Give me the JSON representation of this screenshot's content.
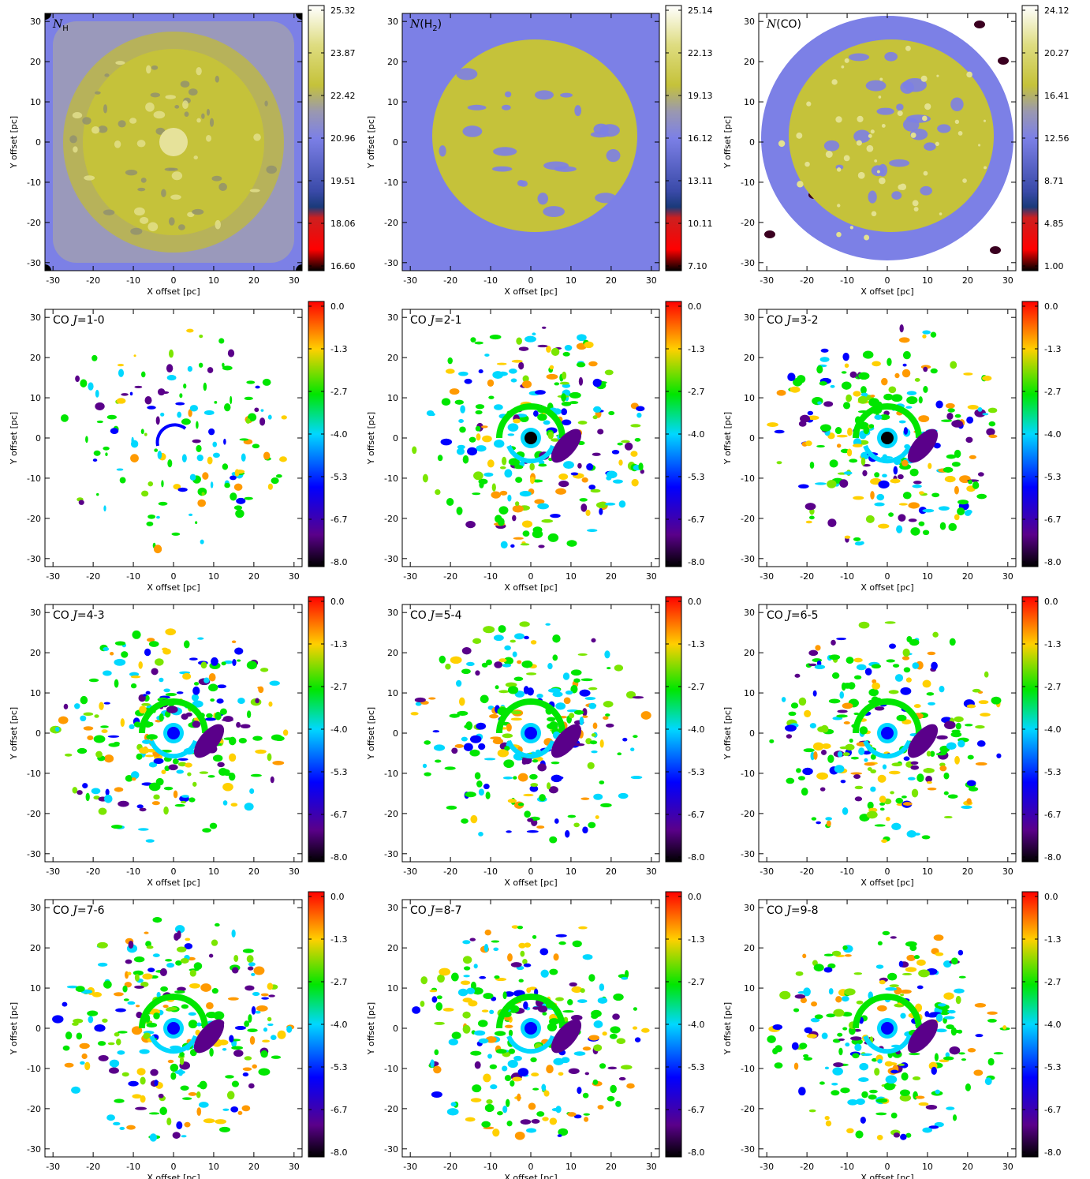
{
  "chart_data": [
    {
      "type": "heatmap",
      "title": "N_H",
      "title_main": "N",
      "title_sub": "H",
      "title_paren": false,
      "colormap": "column",
      "xlabel": "X offset [pc]",
      "ylabel": "Y offset [pc]",
      "xlim": [
        -32,
        32
      ],
      "ylim": [
        -32,
        32
      ],
      "xticks": [
        -30,
        -20,
        -10,
        0,
        10,
        20,
        30
      ],
      "yticks": [
        -30,
        -20,
        -10,
        0,
        10,
        20,
        30
      ],
      "colorbar_labels": [
        "25.32",
        "23.87",
        "22.42",
        "20.96",
        "19.51",
        "18.06",
        "16.60"
      ],
      "colorbar_range": [
        16.6,
        25.32
      ],
      "structure": "dense"
    },
    {
      "type": "heatmap",
      "title": "N(H2)",
      "title_main": "N",
      "title_sub": "2",
      "title_paren": true,
      "title_species": "H",
      "colormap": "column",
      "xlabel": "X offset [pc]",
      "ylabel": "Y offset [pc]",
      "xlim": [
        -32,
        32
      ],
      "ylim": [
        -32,
        32
      ],
      "xticks": [
        -30,
        -20,
        -10,
        0,
        10,
        20,
        30
      ],
      "yticks": [
        -30,
        -20,
        -10,
        0,
        10,
        20,
        30
      ],
      "colorbar_labels": [
        "25.14",
        "22.13",
        "19.13",
        "16.12",
        "13.11",
        "10.11",
        "7.10"
      ],
      "colorbar_range": [
        7.1,
        25.14
      ],
      "structure": "disk"
    },
    {
      "type": "heatmap",
      "title": "N(CO)",
      "title_main": "N",
      "title_sub": "",
      "title_paren": true,
      "title_species": "CO",
      "colormap": "column",
      "xlabel": "X offset [pc]",
      "ylabel": "Y offset [pc]",
      "xlim": [
        -32,
        32
      ],
      "ylim": [
        -32,
        32
      ],
      "xticks": [
        -30,
        -20,
        -10,
        0,
        10,
        20,
        30
      ],
      "yticks": [
        -30,
        -20,
        -10,
        0,
        10,
        20,
        30
      ],
      "colorbar_labels": [
        "24.12",
        "20.27",
        "16.41",
        "12.56",
        "8.71",
        "4.85",
        "1.00"
      ],
      "colorbar_range": [
        1.0,
        24.12
      ],
      "structure": "disk"
    },
    {
      "type": "heatmap",
      "title": "CO J=1-0",
      "line": "1-0",
      "colormap": "rainbow",
      "xlabel": "X offset [pc]",
      "ylabel": "Y offset [pc]",
      "xlim": [
        -32,
        32
      ],
      "ylim": [
        -32,
        32
      ],
      "xticks": [
        -30,
        -20,
        -10,
        0,
        10,
        20,
        30
      ],
      "yticks": [
        -30,
        -20,
        -10,
        0,
        10,
        20,
        30
      ],
      "colorbar_labels": [
        "0.0",
        "-1.3",
        "-2.7",
        "-4.0",
        "-5.3",
        "-6.7",
        "-8.0"
      ],
      "colorbar_range": [
        -8.0,
        0.0
      ],
      "structure": "sparse"
    },
    {
      "type": "heatmap",
      "title": "CO J=2-1",
      "line": "2-1",
      "colormap": "rainbow",
      "xlabel": "X offset [pc]",
      "ylabel": "Y offset [pc]",
      "xlim": [
        -32,
        32
      ],
      "ylim": [
        -32,
        32
      ],
      "xticks": [
        -30,
        -20,
        -10,
        0,
        10,
        20,
        30
      ],
      "yticks": [
        -30,
        -20,
        -10,
        0,
        10,
        20,
        30
      ],
      "colorbar_labels": [
        "0.0",
        "-1.3",
        "-2.7",
        "-4.0",
        "-5.3",
        "-6.7",
        "-8.0"
      ],
      "colorbar_range": [
        -8.0,
        0.0
      ],
      "structure": "clumps"
    },
    {
      "type": "heatmap",
      "title": "CO J=3-2",
      "line": "3-2",
      "colormap": "rainbow",
      "xlabel": "X offset [pc]",
      "ylabel": "Y offset [pc]",
      "xlim": [
        -32,
        32
      ],
      "ylim": [
        -32,
        32
      ],
      "xticks": [
        -30,
        -20,
        -10,
        0,
        10,
        20,
        30
      ],
      "yticks": [
        -30,
        -20,
        -10,
        0,
        10,
        20,
        30
      ],
      "colorbar_labels": [
        "0.0",
        "-1.3",
        "-2.7",
        "-4.0",
        "-5.3",
        "-6.7",
        "-8.0"
      ],
      "colorbar_range": [
        -8.0,
        0.0
      ],
      "structure": "clumps"
    },
    {
      "type": "heatmap",
      "title": "CO J=4-3",
      "line": "4-3",
      "colormap": "rainbow",
      "xlabel": "X offset [pc]",
      "ylabel": "Y offset [pc]",
      "xlim": [
        -32,
        32
      ],
      "ylim": [
        -32,
        32
      ],
      "xticks": [
        -30,
        -20,
        -10,
        0,
        10,
        20,
        30
      ],
      "yticks": [
        -30,
        -20,
        -10,
        0,
        10,
        20,
        30
      ],
      "colorbar_labels": [
        "0.0",
        "-1.3",
        "-2.7",
        "-4.0",
        "-5.3",
        "-6.7",
        "-8.0"
      ],
      "colorbar_range": [
        -8.0,
        0.0
      ],
      "structure": "clumps"
    },
    {
      "type": "heatmap",
      "title": "CO J=5-4",
      "line": "5-4",
      "colormap": "rainbow",
      "xlabel": "X offset [pc]",
      "ylabel": "Y offset [pc]",
      "xlim": [
        -32,
        32
      ],
      "ylim": [
        -32,
        32
      ],
      "xticks": [
        -30,
        -20,
        -10,
        0,
        10,
        20,
        30
      ],
      "yticks": [
        -30,
        -20,
        -10,
        0,
        10,
        20,
        30
      ],
      "colorbar_labels": [
        "0.0",
        "-1.3",
        "-2.7",
        "-4.0",
        "-5.3",
        "-6.7",
        "-8.0"
      ],
      "colorbar_range": [
        -8.0,
        0.0
      ],
      "structure": "clumps"
    },
    {
      "type": "heatmap",
      "title": "CO J=6-5",
      "line": "6-5",
      "colormap": "rainbow",
      "xlabel": "X offset [pc]",
      "ylabel": "Y offset [pc]",
      "xlim": [
        -32,
        32
      ],
      "ylim": [
        -32,
        32
      ],
      "xticks": [
        -30,
        -20,
        -10,
        0,
        10,
        20,
        30
      ],
      "yticks": [
        -30,
        -20,
        -10,
        0,
        10,
        20,
        30
      ],
      "colorbar_labels": [
        "0.0",
        "-1.3",
        "-2.7",
        "-4.0",
        "-5.3",
        "-6.7",
        "-8.0"
      ],
      "colorbar_range": [
        -8.0,
        0.0
      ],
      "structure": "clumps"
    },
    {
      "type": "heatmap",
      "title": "CO J=7-6",
      "line": "7-6",
      "colormap": "rainbow",
      "xlabel": "X offset [pc]",
      "ylabel": "Y offset [pc]",
      "xlim": [
        -32,
        32
      ],
      "ylim": [
        -32,
        32
      ],
      "xticks": [
        -30,
        -20,
        -10,
        0,
        10,
        20,
        30
      ],
      "yticks": [
        -30,
        -20,
        -10,
        0,
        10,
        20,
        30
      ],
      "colorbar_labels": [
        "0.0",
        "-1.3",
        "-2.7",
        "-4.0",
        "-5.3",
        "-6.7",
        "-8.0"
      ],
      "colorbar_range": [
        -8.0,
        0.0
      ],
      "structure": "clumps"
    },
    {
      "type": "heatmap",
      "title": "CO J=8-7",
      "line": "8-7",
      "colormap": "rainbow",
      "xlabel": "X offset [pc]",
      "ylabel": "Y offset [pc]",
      "xlim": [
        -32,
        32
      ],
      "ylim": [
        -32,
        32
      ],
      "xticks": [
        -30,
        -20,
        -10,
        0,
        10,
        20,
        30
      ],
      "yticks": [
        -30,
        -20,
        -10,
        0,
        10,
        20,
        30
      ],
      "colorbar_labels": [
        "0.0",
        "-1.3",
        "-2.7",
        "-4.0",
        "-5.3",
        "-6.7",
        "-8.0"
      ],
      "colorbar_range": [
        -8.0,
        0.0
      ],
      "structure": "clumps"
    },
    {
      "type": "heatmap",
      "title": "CO J=9-8",
      "line": "9-8",
      "colormap": "rainbow",
      "xlabel": "X offset [pc]",
      "ylabel": "Y offset [pc]",
      "xlim": [
        -32,
        32
      ],
      "ylim": [
        -32,
        32
      ],
      "xticks": [
        -30,
        -20,
        -10,
        0,
        10,
        20,
        30
      ],
      "yticks": [
        -30,
        -20,
        -10,
        0,
        10,
        20,
        30
      ],
      "colorbar_labels": [
        "0.0",
        "-1.3",
        "-2.7",
        "-4.0",
        "-5.3",
        "-6.7",
        "-8.0"
      ],
      "colorbar_range": [
        -8.0,
        0.0
      ],
      "structure": "clumps"
    }
  ],
  "colors": {
    "background_blue": "#7c80e6",
    "olive": "#c5c23a",
    "olive_light": "#e3e18f",
    "column_scale": [
      "#000000",
      "#ff0000",
      "#1a3a7a",
      "#7c80e6",
      "#c5c23a",
      "#ffffff"
    ],
    "rainbow_scale": [
      "#000000",
      "#5a008a",
      "#0000ff",
      "#00d8ff",
      "#00e600",
      "#ffd000",
      "#ff0000"
    ]
  }
}
